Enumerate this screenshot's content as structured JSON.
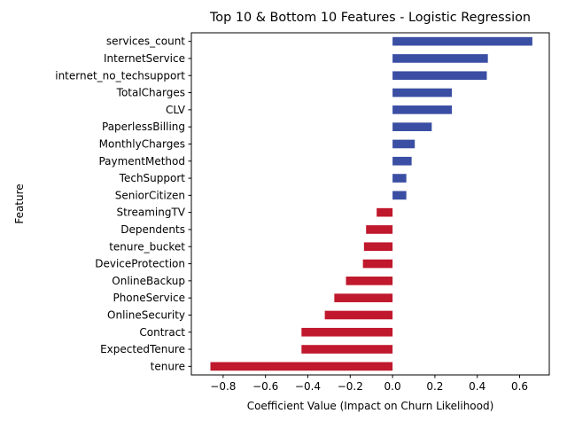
{
  "chart_data": {
    "type": "bar",
    "orientation": "horizontal",
    "title": "Top 10 & Bottom 10 Features - Logistic Regression",
    "xlabel": "Coefficient Value (Impact on Churn Likelihood)",
    "ylabel": "Feature",
    "xlim": [
      -0.95,
      0.74
    ],
    "xticks": [
      -0.8,
      -0.6,
      -0.4,
      -0.2,
      0.0,
      0.2,
      0.4,
      0.6
    ],
    "xtick_labels": [
      "−0.8",
      "−0.6",
      "−0.4",
      "−0.2",
      "0.0",
      "0.2",
      "0.4",
      "0.6"
    ],
    "grid": false,
    "legend": "none",
    "colors": {
      "positive": "#3a4ea3",
      "negative": "#c0182c"
    },
    "categories": [
      "services_count",
      "InternetService",
      "internet_no_techsupport",
      "TotalCharges",
      "CLV",
      "PaperlessBilling",
      "MonthlyCharges",
      "PaymentMethod",
      "TechSupport",
      "SeniorCitizen",
      "StreamingTV",
      "Dependents",
      "tenure_bucket",
      "DeviceProtection",
      "OnlineBackup",
      "PhoneService",
      "OnlineSecurity",
      "Contract",
      "ExpectedTenure",
      "tenure"
    ],
    "values": [
      0.66,
      0.45,
      0.445,
      0.28,
      0.28,
      0.185,
      0.105,
      0.09,
      0.065,
      0.065,
      -0.075,
      -0.125,
      -0.135,
      -0.14,
      -0.22,
      -0.275,
      -0.32,
      -0.43,
      -0.43,
      -0.86
    ]
  }
}
